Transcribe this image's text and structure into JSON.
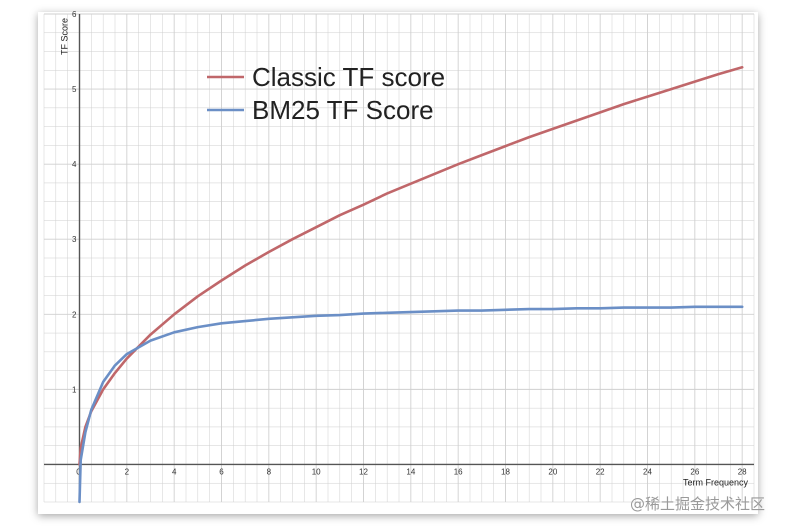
{
  "chart_data": {
    "type": "line",
    "title": "",
    "xlabel": "Term Frequency",
    "ylabel": "TF Score",
    "xlim": [
      -1.5,
      28.5
    ],
    "ylim": [
      -0.5,
      6
    ],
    "x_ticks": [
      2,
      4,
      6,
      8,
      10,
      12,
      14,
      16,
      18,
      20,
      22,
      24,
      26,
      28
    ],
    "y_ticks": [
      1,
      2,
      3,
      4,
      5,
      6
    ],
    "origin_label": "0",
    "grid": true,
    "legend_position": "top-left",
    "series": [
      {
        "name": "Classic TF score",
        "color": "#c0676a",
        "x": [
          0,
          0.05,
          0.25,
          0.5,
          1,
          1.5,
          2,
          3,
          4,
          5,
          6,
          7,
          8,
          9,
          10,
          11,
          12,
          13,
          14,
          15,
          16,
          17,
          18,
          19,
          20,
          21,
          22,
          23,
          24,
          25,
          26,
          27,
          28
        ],
        "y": [
          0,
          0.22,
          0.5,
          0.71,
          1.0,
          1.22,
          1.41,
          1.73,
          2.0,
          2.24,
          2.45,
          2.65,
          2.83,
          3.0,
          3.16,
          3.32,
          3.46,
          3.61,
          3.74,
          3.87,
          4.0,
          4.12,
          4.24,
          4.36,
          4.47,
          4.58,
          4.69,
          4.8,
          4.9,
          5.0,
          5.1,
          5.2,
          5.29
        ]
      },
      {
        "name": "BM25 TF Score",
        "color": "#6b8fc6",
        "x": [
          0,
          0.05,
          0.25,
          0.5,
          1,
          1.5,
          2,
          3,
          4,
          5,
          6,
          7,
          8,
          9,
          10,
          11,
          12,
          13,
          14,
          15,
          16,
          17,
          18,
          19,
          20,
          21,
          22,
          23,
          24,
          25,
          26,
          27,
          28
        ],
        "y": [
          -0.5,
          0.06,
          0.43,
          0.73,
          1.1,
          1.32,
          1.47,
          1.65,
          1.76,
          1.83,
          1.88,
          1.91,
          1.94,
          1.96,
          1.98,
          1.99,
          2.01,
          2.02,
          2.03,
          2.04,
          2.05,
          2.05,
          2.06,
          2.07,
          2.07,
          2.08,
          2.08,
          2.09,
          2.09,
          2.09,
          2.1,
          2.1,
          2.1
        ]
      }
    ]
  },
  "watermark": "@稀土掘金技术社区",
  "colors": {
    "grid": "#cfcfcf",
    "axis": "#555555"
  }
}
